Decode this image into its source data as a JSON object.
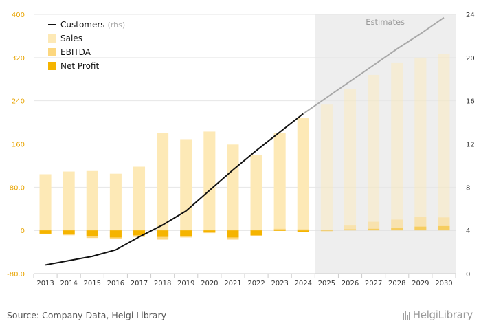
{
  "chart_data": {
    "type": "bar",
    "categories": [
      "2013",
      "2014",
      "2015",
      "2016",
      "2017",
      "2018",
      "2019",
      "2020",
      "2021",
      "2022",
      "2023",
      "2024",
      "2025",
      "2026",
      "2027",
      "2028",
      "2029",
      "2030"
    ],
    "estimates_from": "2025",
    "estimates_label": "Estimates",
    "y_left": {
      "ylim": [
        -80,
        400
      ],
      "ticks": [
        "-80.0",
        "0",
        "80.0",
        "160",
        "240",
        "320",
        "400"
      ],
      "tick_values": [
        -80,
        0,
        80,
        160,
        240,
        320,
        400
      ]
    },
    "y_right": {
      "ylim": [
        0,
        24
      ],
      "ticks": [
        "0",
        "4",
        "8",
        "12",
        "16",
        "20",
        "24"
      ],
      "tick_values": [
        0,
        4,
        8,
        12,
        16,
        20,
        24
      ]
    },
    "legend": {
      "placement": "top-left",
      "items": [
        {
          "label": "Customers",
          "suffix": "(rhs)",
          "kind": "line"
        },
        {
          "label": "Sales",
          "kind": "bar"
        },
        {
          "label": "EBITDA",
          "kind": "bar"
        },
        {
          "label": "Net Profit",
          "kind": "bar"
        }
      ]
    },
    "series": [
      {
        "name": "Sales",
        "axis": "left",
        "color": "#fde9b6",
        "values": [
          104,
          109,
          110,
          105,
          118,
          181,
          169,
          183,
          159,
          139,
          181,
          209,
          233,
          262,
          288,
          311,
          320,
          327
        ]
      },
      {
        "name": "EBITDA",
        "axis": "left",
        "color": "#fcd77f",
        "values": [
          -7,
          -9,
          -14,
          -16,
          -12,
          -17,
          -13,
          -5,
          -17,
          -11,
          3,
          2,
          -2,
          9,
          16,
          20,
          25,
          24
        ]
      },
      {
        "name": "Net Profit",
        "axis": "left",
        "color": "#f5b400",
        "values": [
          -6,
          -7,
          -11,
          -13,
          -9,
          -12,
          -10,
          -3,
          -13,
          -9,
          -1,
          -3,
          -1,
          2,
          3,
          4,
          7,
          8
        ]
      },
      {
        "name": "Customers",
        "axis": "right",
        "color": "#111111",
        "estimate_color": "#a9a9a9",
        "type": "line",
        "values": [
          0.8,
          1.2,
          1.6,
          2.2,
          3.4,
          4.5,
          5.8,
          7.7,
          9.6,
          11.4,
          13.1,
          14.8,
          16.3,
          17.8,
          19.3,
          20.8,
          22.2,
          23.7
        ]
      }
    ],
    "grid": true
  },
  "footer": {
    "source": "Source: Company Data, Helgi Library",
    "logo": "HelgiLibrary"
  }
}
